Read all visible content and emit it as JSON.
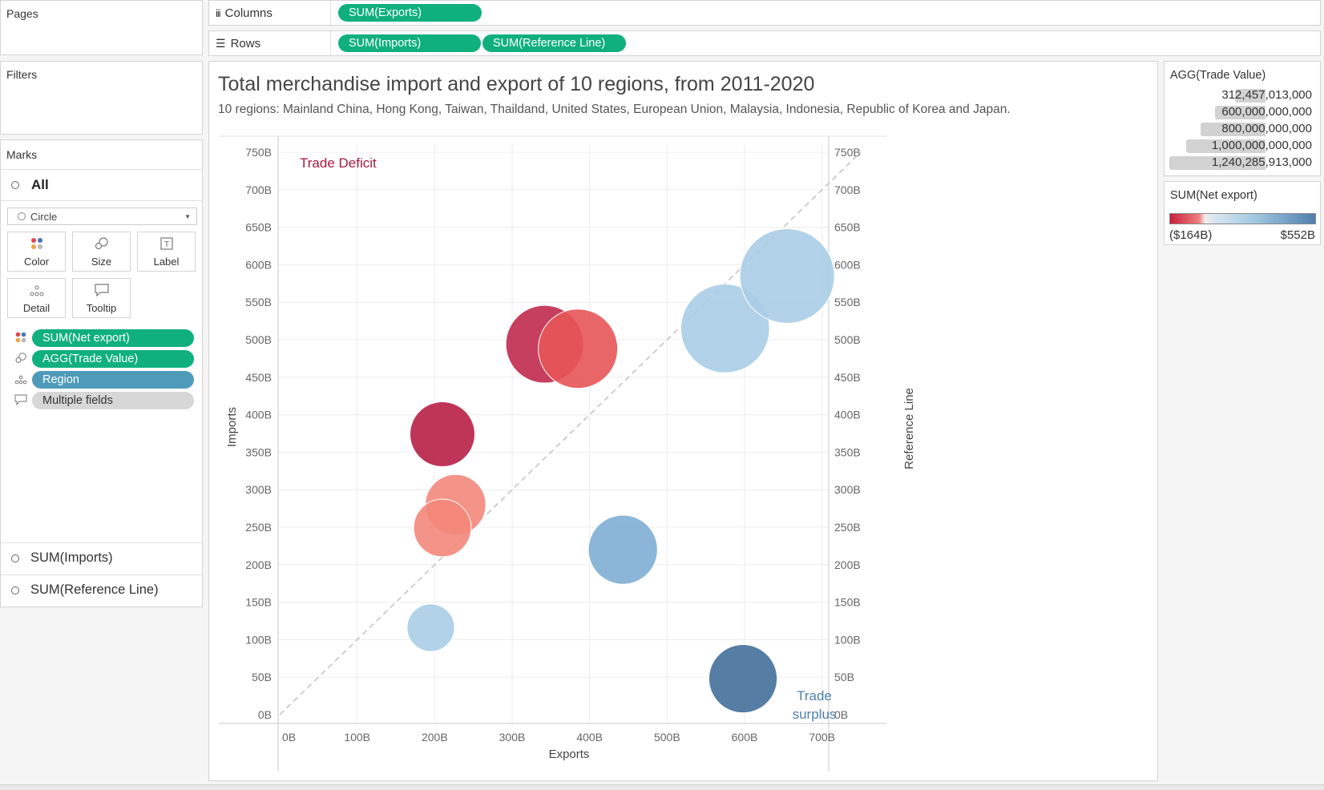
{
  "shelves": {
    "pages_title": "Pages",
    "columns_label": "Columns",
    "rows_label": "Rows",
    "columns_pills": [
      "SUM(Exports)"
    ],
    "rows_pills": [
      "SUM(Imports)",
      "SUM(Reference Line)"
    ]
  },
  "filters": {
    "title": "Filters"
  },
  "marks": {
    "title": "Marks",
    "all_label": "All",
    "mark_type": "Circle",
    "buttons": [
      "Color",
      "Size",
      "Label",
      "Detail",
      "Tooltip"
    ],
    "fields": [
      "SUM(Net export)",
      "AGG(Trade Value)",
      "Region",
      "Multiple fields"
    ],
    "sub_marks": [
      "SUM(Imports)",
      "SUM(Reference Line)"
    ]
  },
  "view": {
    "title": "Total merchandise import and export of 10 regions, from 2011-2020",
    "subtitle": "10 regions: Mainland China, Hong Kong, Taiwan, Thaildand, United States, European Union, Malaysia, Indonesia, Republic of Korea and Japan.",
    "annotation_deficit": "Trade Deficit",
    "annotation_surplus": "Trade surplus"
  },
  "size_legend": {
    "title": "AGG(Trade Value)",
    "entries": [
      "312,457,013,000",
      "600,000,000,000",
      "800,000,000,000",
      "1,000,000,000,000",
      "1,240,285,913,000"
    ],
    "values": [
      312457013000,
      600000000000,
      800000000000,
      1000000000000,
      1240285913000
    ]
  },
  "color_legend": {
    "title": "SUM(Net export)",
    "min_label": "($164B)",
    "max_label": "$552B",
    "min": -164,
    "max": 552
  },
  "colors": {
    "pill_green": "#10b07c",
    "pill_blue": "#4e9bb9",
    "deficit_text": "#a8193f",
    "surplus_text": "#4f7fae"
  },
  "chart_data": {
    "type": "scatter",
    "xlabel": "Exports",
    "ylabel": "Imports",
    "y2label": "Reference Line",
    "xlim": [
      0,
      750
    ],
    "ylim": [
      0,
      750
    ],
    "x_ticks": [
      "0B",
      "100B",
      "200B",
      "300B",
      "400B",
      "500B",
      "600B",
      "700B"
    ],
    "y_ticks": [
      "0B",
      "50B",
      "100B",
      "150B",
      "200B",
      "250B",
      "300B",
      "350B",
      "400B",
      "450B",
      "500B",
      "550B",
      "600B",
      "650B",
      "700B",
      "750B"
    ],
    "x_tick_values": [
      0,
      100,
      200,
      300,
      400,
      500,
      600,
      700
    ],
    "y_tick_values": [
      0,
      50,
      100,
      150,
      200,
      250,
      300,
      350,
      400,
      450,
      500,
      550,
      600,
      650,
      700,
      750
    ],
    "reference_line": [
      [
        0,
        0
      ],
      [
        750,
        750
      ]
    ],
    "points": [
      {
        "x": 342,
        "y": 494,
        "trade_value_b": 836,
        "color": "#c12a4e"
      },
      {
        "x": 385,
        "y": 488,
        "trade_value_b": 873,
        "color": "#e55558"
      },
      {
        "x": 575,
        "y": 515,
        "trade_value_b": 1090,
        "color": "#a9cde5"
      },
      {
        "x": 655,
        "y": 585,
        "trade_value_b": 1240,
        "color": "#a9cde5"
      },
      {
        "x": 210,
        "y": 374,
        "trade_value_b": 584,
        "color": "#b71f46"
      },
      {
        "x": 227,
        "y": 280,
        "trade_value_b": 507,
        "color": "#f3877a"
      },
      {
        "x": 210,
        "y": 249,
        "trade_value_b": 459,
        "color": "#f3877a"
      },
      {
        "x": 443,
        "y": 220,
        "trade_value_b": 663,
        "color": "#80aed4"
      },
      {
        "x": 195,
        "y": 116,
        "trade_value_b": 312,
        "color": "#a9cde5"
      },
      {
        "x": 598,
        "y": 48,
        "trade_value_b": 646,
        "color": "#44709b"
      }
    ]
  }
}
